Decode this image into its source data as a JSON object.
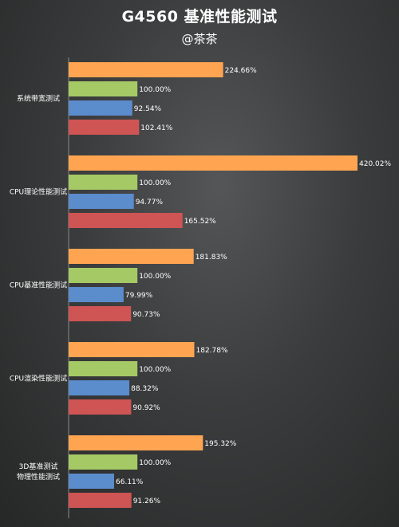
{
  "chart_data": {
    "type": "bar",
    "orientation": "horizontal",
    "title": "G4560 基准性能测试",
    "subtitle": "@茶茶",
    "categories": [
      "系统带宽测试",
      "CPU理论性能测试",
      "CPU基准性能测试",
      "CPU渲染性能测试",
      "3D基准测试\n物理性能测试"
    ],
    "series": [
      {
        "color": "#ffa552",
        "values": [
          224.66,
          420.02,
          181.83,
          182.78,
          195.32
        ],
        "labels": [
          "224.66%",
          "420.02%",
          "181.83%",
          "182.78%",
          "195.32%"
        ]
      },
      {
        "color": "#a5c964",
        "values": [
          100.0,
          100.0,
          100.0,
          100.0,
          100.0
        ],
        "labels": [
          "100.00%",
          "100.00%",
          "100.00%",
          "100.00%",
          "100.00%"
        ]
      },
      {
        "color": "#5b8ccc",
        "values": [
          92.54,
          94.77,
          79.99,
          88.32,
          66.11
        ],
        "labels": [
          "92.54%",
          "94.77%",
          "79.99%",
          "88.32%",
          "66.11%"
        ]
      },
      {
        "color": "#cf5454",
        "values": [
          102.41,
          165.52,
          90.73,
          90.92,
          91.26
        ],
        "labels": [
          "102.41%",
          "165.52%",
          "90.73%",
          "90.92%",
          "91.26%"
        ]
      }
    ],
    "grid": false,
    "legend": "none"
  }
}
